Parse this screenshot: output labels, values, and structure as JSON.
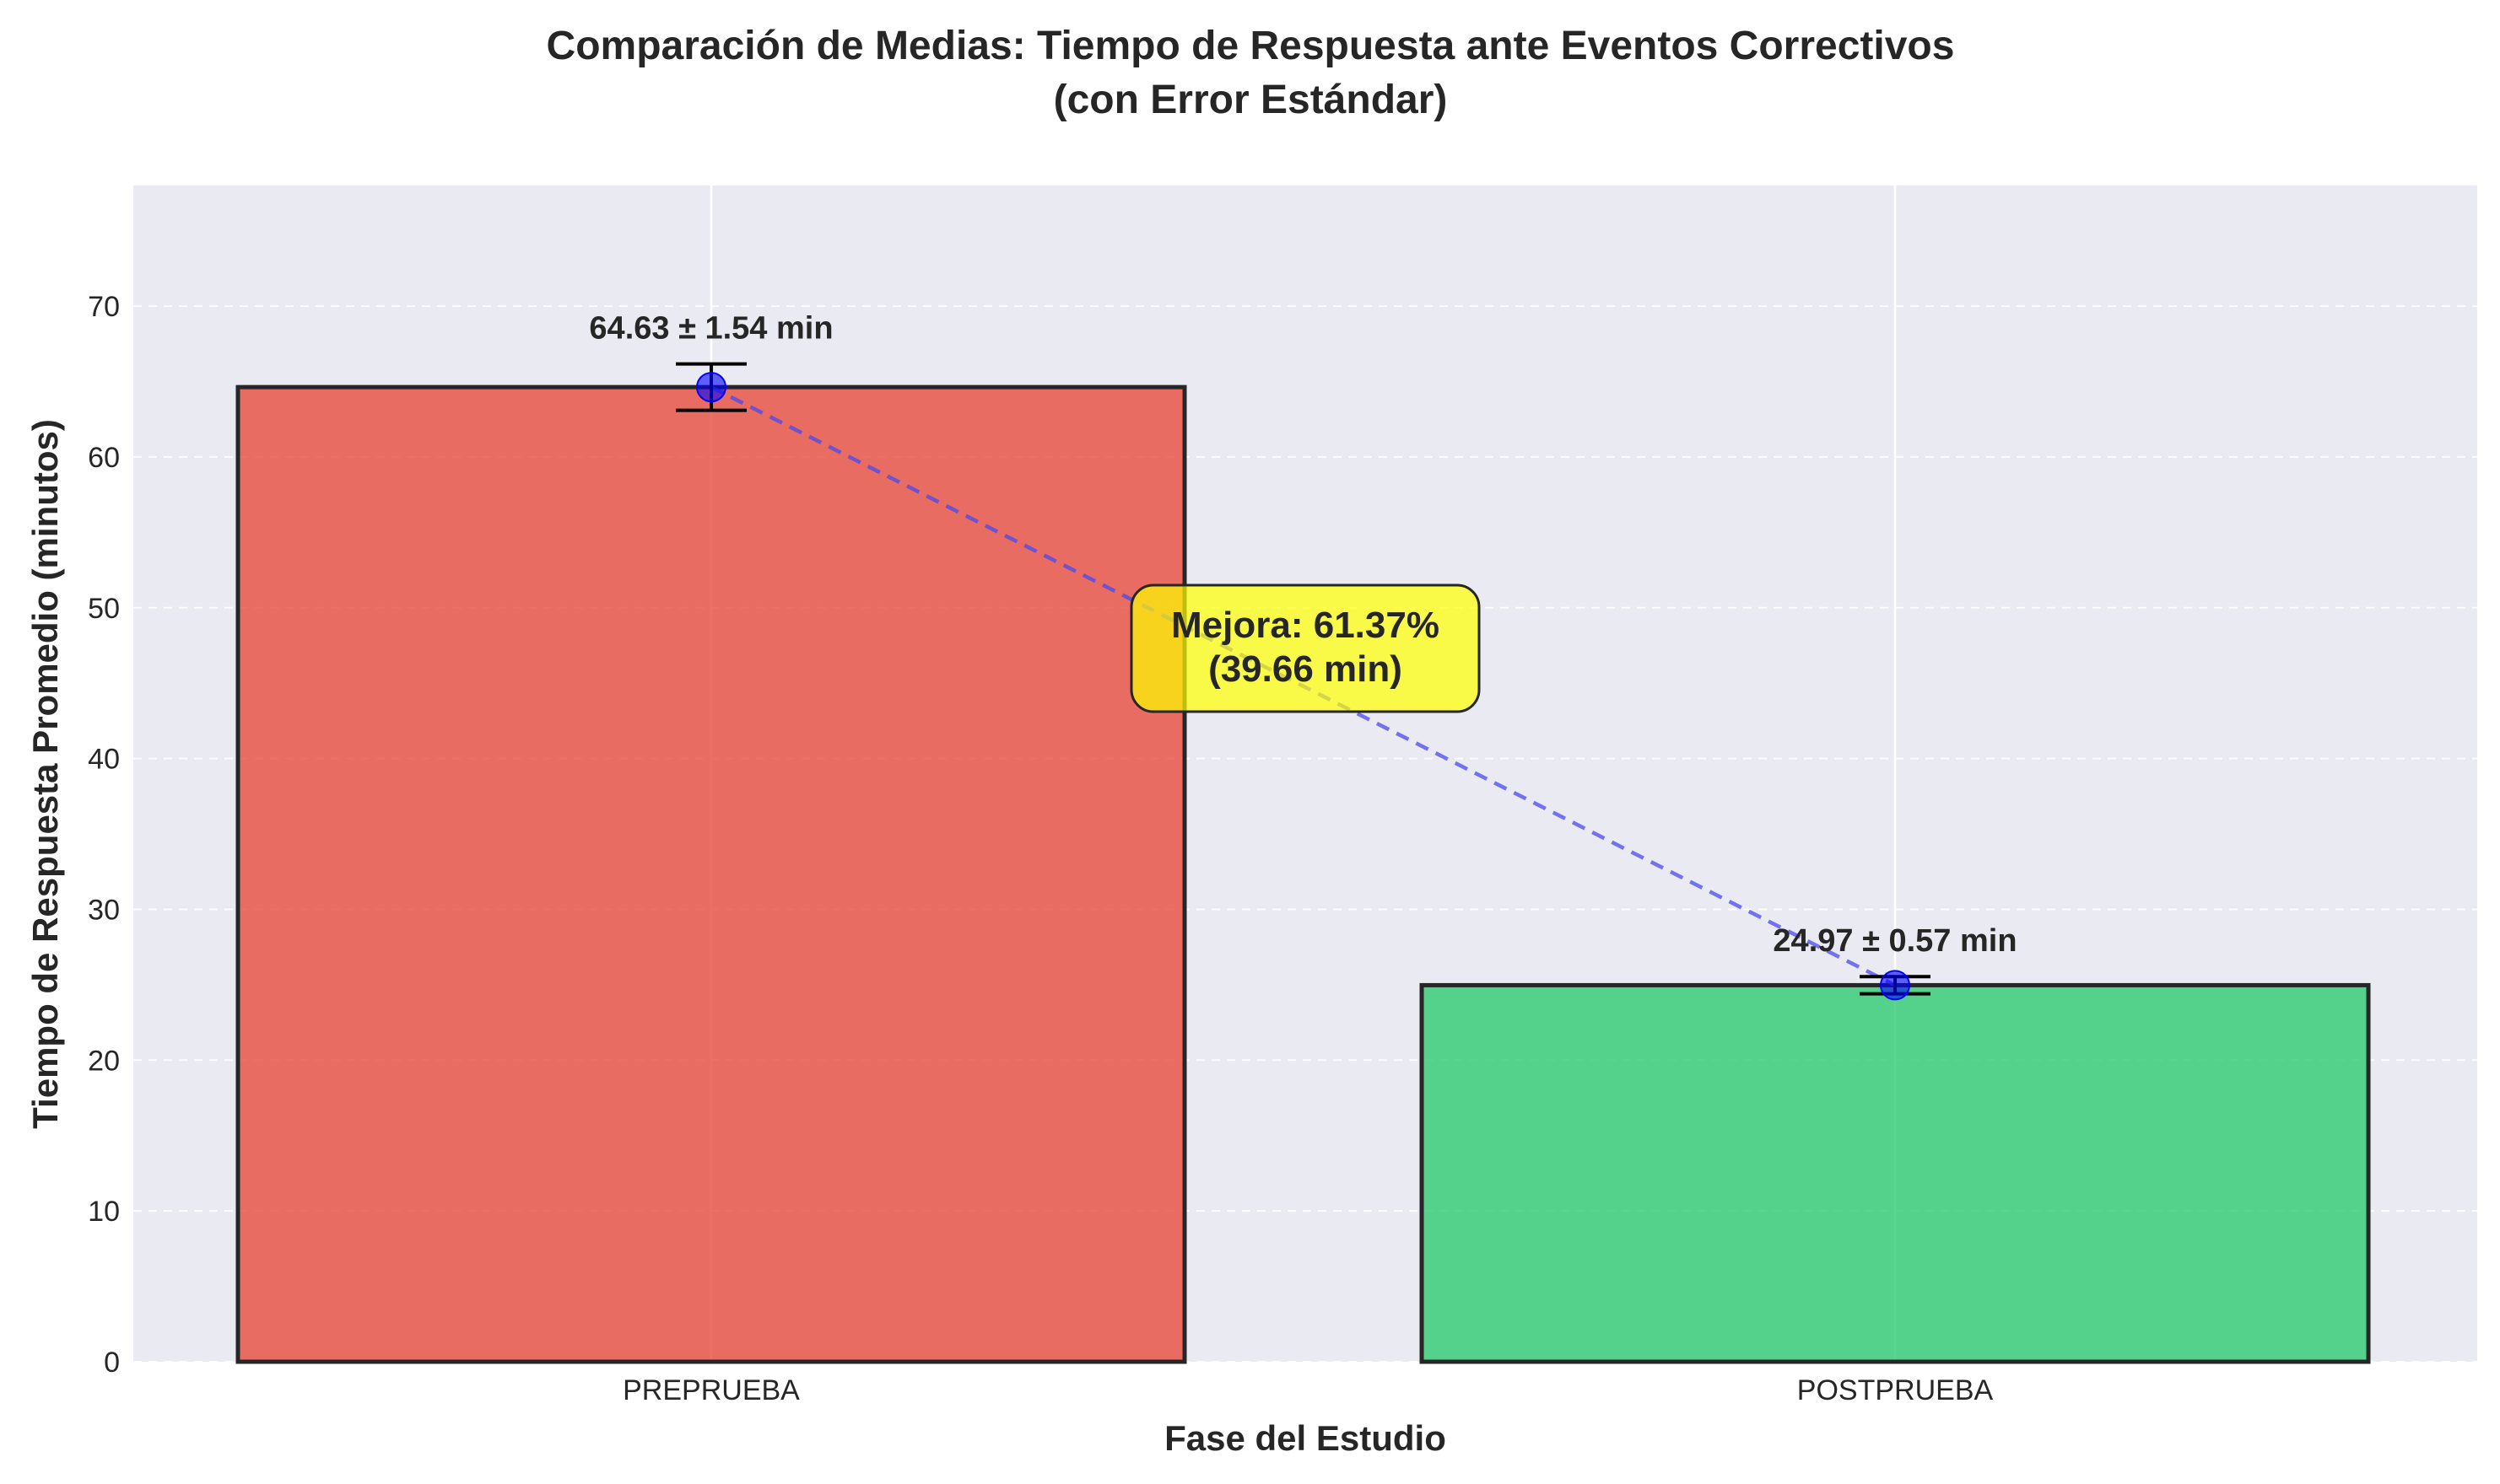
{
  "chart_data": {
    "type": "bar",
    "title_lines": [
      "Comparación de Medias: Tiempo de Respuesta ante Eventos Correctivos",
      "(con Error Estándar)"
    ],
    "xlabel": "Fase del Estudio",
    "ylabel": "Tiempo de Respuesta Promedio (minutos)",
    "categories": [
      "PREPRUEBA",
      "POSTPRUEBA"
    ],
    "values": [
      64.63,
      24.97
    ],
    "errors": [
      1.54,
      0.57
    ],
    "data_labels": [
      "64.63 ± 1.54 min",
      "24.97 ± 0.57 min"
    ],
    "ylim": [
      0,
      78
    ],
    "yticks": [
      0,
      10,
      20,
      30,
      40,
      50,
      60,
      70
    ],
    "grid": true,
    "annotation_lines": [
      "Mejora: 61.37%",
      "(39.66 min)"
    ],
    "colors": {
      "background": "#eaeaf2",
      "bars": [
        "#e74c3c",
        "#2ecc71"
      ],
      "bar_edge": "#262626",
      "points": "#0000ff",
      "connector": "#4a4af0",
      "annotation_fill": "#ffff00",
      "grid": "#ffffff"
    }
  }
}
